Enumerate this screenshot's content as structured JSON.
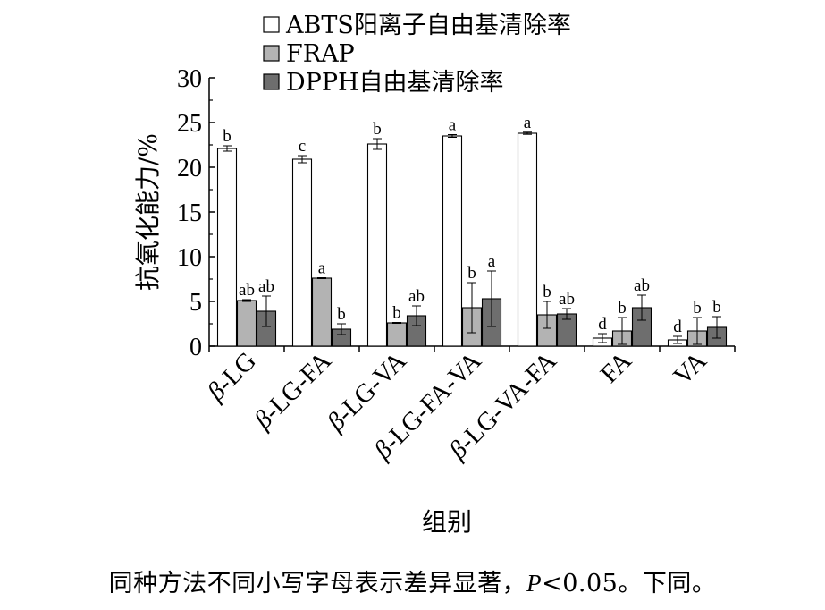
{
  "chart_data": {
    "type": "bar",
    "ylabel": "抗氧化能力/%",
    "xlabel": "组别",
    "ylim": [
      0,
      30
    ],
    "yticks": [
      "0",
      "5",
      "10",
      "15",
      "20",
      "25",
      "30"
    ],
    "categories": [
      "β-LG",
      "β-LG-FA",
      "β-LG-VA",
      "β-LG-FA-VA",
      "β-LG-VA-FA",
      "FA",
      "VA"
    ],
    "series": [
      {
        "name": "ABTS阳离子自由基清除率",
        "color": "#ffffff",
        "values": [
          22.1,
          20.9,
          22.6,
          23.5,
          23.8,
          0.9,
          0.7
        ],
        "errors": [
          0.3,
          0.4,
          0.6,
          0.15,
          0.12,
          0.5,
          0.4
        ],
        "letters": [
          "b",
          "c",
          "b",
          "a",
          "a",
          "d",
          "d"
        ]
      },
      {
        "name": "FRAP",
        "color": "#b3b3b3",
        "values": [
          5.1,
          7.6,
          2.6,
          4.3,
          3.5,
          1.7,
          1.7
        ],
        "errors": [
          0.1,
          0.05,
          0.05,
          2.8,
          1.5,
          1.5,
          1.5
        ],
        "letters": [
          "ab",
          "a",
          "b",
          "b",
          "b",
          "b",
          "b"
        ]
      },
      {
        "name": "DPPH自由基清除率",
        "color": "#6e6e6e",
        "values": [
          3.9,
          1.9,
          3.4,
          5.3,
          3.6,
          4.3,
          2.1
        ],
        "errors": [
          1.7,
          0.6,
          1.1,
          3.1,
          0.6,
          1.4,
          1.2
        ],
        "letters": [
          "ab",
          "b",
          "ab",
          "a",
          "ab",
          "ab",
          "b"
        ]
      }
    ],
    "legend_position": "top"
  },
  "caption": {
    "text_before": "同种方法不同小写字母表示差异显著，",
    "p_symbol": "P",
    "text_after": "<0.05。下同。"
  }
}
